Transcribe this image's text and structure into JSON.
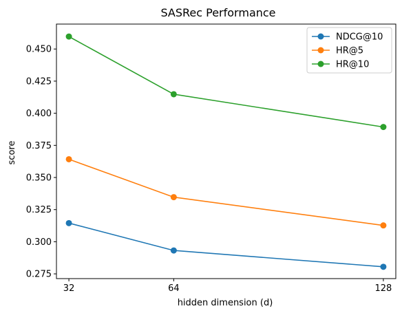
{
  "chart_data": {
    "type": "line",
    "title": "SASRec Performance",
    "xlabel": "hidden dimension (d)",
    "ylabel": "score",
    "x": [
      32,
      64,
      128
    ],
    "x_tick_labels": [
      "32",
      "64",
      "128"
    ],
    "xlim": [
      28.2,
      131.8
    ],
    "ylim": [
      0.2713,
      0.4694
    ],
    "y_ticks": [
      0.275,
      0.3,
      0.325,
      0.35,
      0.375,
      0.4,
      0.425,
      0.45
    ],
    "y_tick_labels": [
      "0.275",
      "0.300",
      "0.325",
      "0.350",
      "0.375",
      "0.400",
      "0.425",
      "0.450"
    ],
    "grid": false,
    "legend_position": "top-right",
    "series": [
      {
        "name": "NDCG@10",
        "color": "#1f77b4",
        "values": [
          0.3145,
          0.2932,
          0.2805
        ]
      },
      {
        "name": "HR@5",
        "color": "#ff7f0e",
        "values": [
          0.3642,
          0.3347,
          0.3127
        ]
      },
      {
        "name": "HR@10",
        "color": "#2ca02c",
        "values": [
          0.4597,
          0.4148,
          0.3893
        ]
      }
    ]
  }
}
